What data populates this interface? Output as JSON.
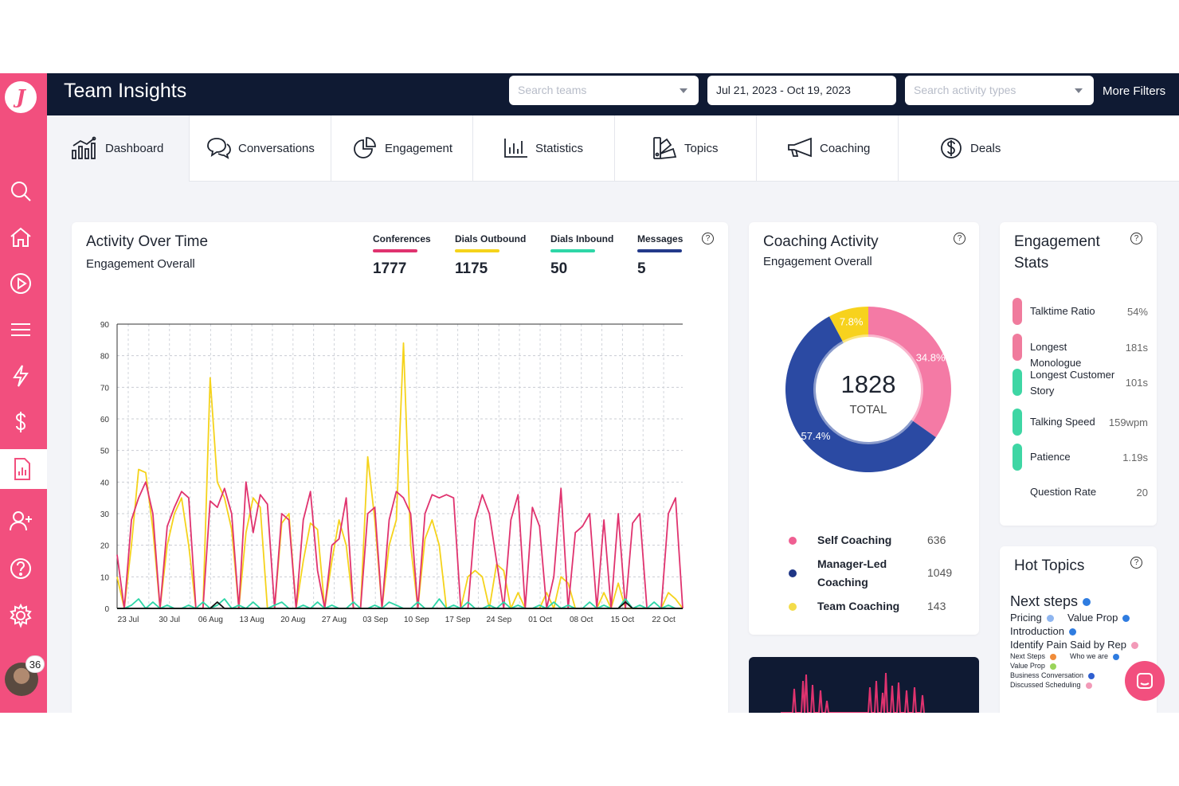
{
  "header": {
    "title": "Team Insights",
    "search_teams_placeholder": "Search teams",
    "date_range": "Jul 21, 2023 - Oct 19, 2023",
    "search_activity_placeholder": "Search activity types",
    "more_filters": "More Filters"
  },
  "sidebar": {
    "logo": "J",
    "notifications_badge": "36"
  },
  "tabs": [
    {
      "label": "Dashboard",
      "icon": "dashboard-chart-icon"
    },
    {
      "label": "Conversations",
      "icon": "chat-bubbles-icon"
    },
    {
      "label": "Engagement",
      "icon": "pie-chart-icon"
    },
    {
      "label": "Statistics",
      "icon": "bar-chart-icon"
    },
    {
      "label": "Topics",
      "icon": "topics-icon"
    },
    {
      "label": "Coaching",
      "icon": "megaphone-icon"
    },
    {
      "label": "Deals",
      "icon": "dollar-circle-icon"
    }
  ],
  "activity": {
    "title": "Activity Over Time",
    "subtitle": "Engagement Overall",
    "metrics": [
      {
        "name": "Conferences",
        "value": "1777",
        "color": "#e0336f"
      },
      {
        "name": "Dials Outbound",
        "value": "1175",
        "color": "#f5d31b"
      },
      {
        "name": "Dials Inbound",
        "value": "50",
        "color": "#2ed6a7"
      },
      {
        "name": "Messages",
        "value": "5",
        "color": "#233a8a"
      }
    ]
  },
  "chart_data": {
    "type": "line",
    "x_tick_labels": [
      "23 Jul",
      "30 Jul",
      "06 Aug",
      "13 Aug",
      "20 Aug",
      "27 Aug",
      "03 Sep",
      "10 Sep",
      "17 Sep",
      "24 Sep",
      "01 Oct",
      "08 Oct",
      "15 Oct",
      "22 Oct"
    ],
    "y_ticks": [
      0,
      10,
      20,
      30,
      40,
      50,
      60,
      70,
      80,
      90
    ],
    "ylim": [
      0,
      90
    ],
    "grid": true,
    "series": [
      {
        "color": "#e0336f",
        "values": [
          17,
          0,
          28,
          35,
          40,
          30,
          0,
          26,
          32,
          37,
          35,
          0,
          0,
          34,
          32,
          38,
          30,
          0,
          40,
          24,
          36,
          33,
          0,
          30,
          28,
          0,
          28,
          37,
          12,
          0,
          20,
          22,
          35,
          0,
          0,
          30,
          32,
          0,
          28,
          37,
          35,
          30,
          0,
          30,
          36,
          35,
          36,
          35,
          0,
          0,
          28,
          36,
          30,
          15,
          0,
          28,
          36,
          0,
          32,
          26,
          0,
          10,
          38,
          0,
          24,
          26,
          30,
          0,
          28,
          0,
          30,
          0,
          27,
          30,
          0,
          0,
          0,
          30,
          35,
          0
        ]
      },
      {
        "color": "#f5d31b",
        "values": [
          10,
          0,
          20,
          44,
          43,
          25,
          0,
          20,
          30,
          35,
          20,
          0,
          0,
          73,
          40,
          35,
          25,
          0,
          24,
          35,
          32,
          0,
          0,
          27,
          30,
          0,
          15,
          27,
          25,
          0,
          15,
          28,
          20,
          0,
          0,
          48,
          28,
          0,
          20,
          28,
          84,
          20,
          0,
          22,
          28,
          20,
          0,
          0,
          0,
          10,
          12,
          10,
          0,
          14,
          12,
          0,
          5,
          0,
          0,
          0,
          5,
          0,
          10,
          8,
          0,
          0,
          0,
          0,
          5,
          0,
          8,
          0,
          0,
          0,
          0,
          0,
          0,
          5,
          3,
          0
        ]
      },
      {
        "color": "#2ed6a7",
        "values": [
          0,
          0,
          1,
          3,
          0,
          2,
          0,
          1,
          0,
          0,
          1,
          0,
          2,
          0,
          1,
          3,
          0,
          1,
          0,
          2,
          0,
          0,
          1,
          2,
          0,
          0,
          1,
          0,
          2,
          0,
          1,
          0,
          0,
          2,
          0,
          0,
          1,
          0,
          2,
          1,
          0,
          0,
          2,
          0,
          0,
          3,
          0,
          1,
          0,
          2,
          0,
          0,
          1,
          0,
          2,
          0,
          1,
          0,
          0,
          1,
          0,
          2,
          0,
          1,
          0,
          0,
          2,
          0,
          1,
          0,
          0,
          3,
          0,
          1,
          0,
          2,
          0,
          1,
          0,
          0
        ]
      },
      {
        "color": "#111111",
        "values": [
          0,
          0,
          0,
          0,
          0,
          0,
          0,
          0,
          0,
          0,
          0,
          0,
          0,
          0,
          2,
          0,
          0,
          0,
          0,
          0,
          0,
          0,
          0,
          0,
          0,
          0,
          0,
          0,
          0,
          0,
          0,
          0,
          0,
          0,
          0,
          0,
          0,
          0,
          0,
          0,
          0,
          0,
          0,
          0,
          0,
          0,
          0,
          0,
          0,
          0,
          0,
          0,
          0,
          0,
          0,
          0,
          0,
          0,
          0,
          0,
          0,
          0,
          0,
          0,
          0,
          0,
          0,
          0,
          0,
          0,
          0,
          2,
          0,
          0,
          0,
          0,
          0,
          0,
          0,
          0
        ]
      }
    ]
  },
  "coaching": {
    "title": "Coaching Activity",
    "subtitle": "Engagement Overall",
    "total": "1828",
    "total_label": "TOTAL",
    "slices": [
      {
        "name": "Self Coaching",
        "value": "636",
        "pct": 34.8,
        "pct_label": "34.8%",
        "color": "#f47aa5"
      },
      {
        "name": "Manager-Led Coaching",
        "value": "1049",
        "pct": 57.4,
        "pct_label": "57.4%",
        "color": "#2b4aa3"
      },
      {
        "name": "Team Coaching",
        "value": "143",
        "pct": 7.8,
        "pct_label": "7.8%",
        "color": "#f7d21d"
      }
    ],
    "legend_colors": [
      "#ef5f92",
      "#1f3686",
      "#f3dc4a"
    ]
  },
  "engagement": {
    "title_line1": "Engagement",
    "title_line2": "Stats",
    "stats": [
      {
        "name": "Talktime Ratio",
        "value": "54%",
        "color": "#f07b9d"
      },
      {
        "name": "Longest Monologue",
        "value": "181s",
        "color": "#f07b9d"
      },
      {
        "name": "Longest Customer Story",
        "value": "101s",
        "color": "#3ed6a4"
      },
      {
        "name": "Talking Speed",
        "value": "159wpm",
        "color": "#3ed6a4"
      },
      {
        "name": "Patience",
        "value": "1.19s",
        "color": "#3ed6a4"
      },
      {
        "name": "Question Rate",
        "value": "20",
        "color": ""
      }
    ]
  },
  "hot_topics": {
    "title": "Hot Topics",
    "items": [
      {
        "text": "Next steps",
        "color": "#2f7ce0"
      },
      {
        "text": "Pricing",
        "color": "#8fb6f0"
      },
      {
        "text": "Value Prop",
        "color": "#2f7ce0"
      },
      {
        "text": "Introduction",
        "color": "#2f7ce0"
      },
      {
        "text": "Identify Pain Said by Rep",
        "color": "#f29ab8"
      },
      {
        "text": "Next Steps",
        "color": "#f08c3a"
      },
      {
        "text": "Who we are",
        "color": "#2f7ce0"
      },
      {
        "text": "Value Prop",
        "color": "#9ad45a"
      },
      {
        "text": "Business Conversation",
        "color": "#2f5fd0"
      },
      {
        "text": "Discussed Scheduling",
        "color": "#f29ab8"
      }
    ]
  }
}
